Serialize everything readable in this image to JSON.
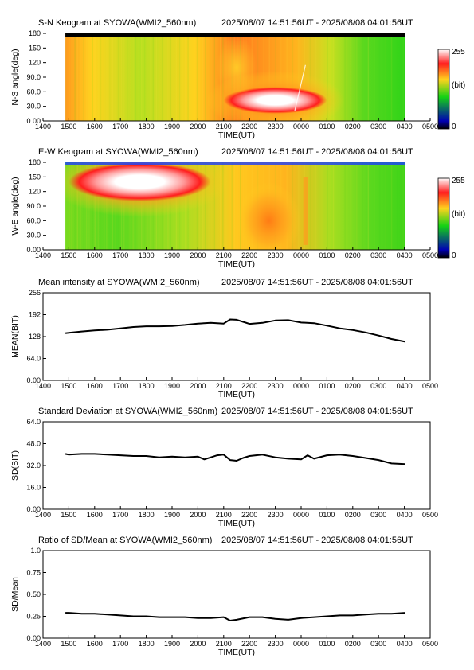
{
  "time_range": "2025/08/07 14:51:56UT - 2025/08/08 04:01:56UT",
  "x_ticks": [
    "1400",
    "1500",
    "1600",
    "1700",
    "1800",
    "1900",
    "2000",
    "2100",
    "2200",
    "2300",
    "0000",
    "0100",
    "0200",
    "0300",
    "0400",
    "0500"
  ],
  "x_label": "TIME(UT)",
  "colorbar": {
    "max_label": "255",
    "unit_label": "(bit)",
    "min_label": "0"
  },
  "colors": {
    "peak": "#ffffff",
    "high": "#ff1e1e",
    "mid": "#ffd21e",
    "low": "#14d214",
    "base": "#0000b4",
    "zero": "#000000"
  },
  "chart_data": [
    {
      "type": "heatmap",
      "title": "S-N Keogram at SYOWA(WMI2_560nm)",
      "ylabel": "N-S angle(deg)",
      "yticks": [
        "0.00",
        "30.0",
        "60.0",
        "90.0",
        "120",
        "150",
        "180"
      ],
      "xlim": [
        "1400",
        "0500"
      ],
      "ylim": [
        0,
        180
      ],
      "data_span": [
        "14:51:56",
        "04:01:56"
      ],
      "description_features": [
        {
          "label": "bright region",
          "t": [
            "21:00",
            "01:00"
          ],
          "angle": [
            15,
            70
          ],
          "peak_bit": 255
        },
        {
          "label": "top band saturated dark",
          "angle": [
            172,
            180
          ]
        }
      ]
    },
    {
      "type": "heatmap",
      "title": "E-W Keogram at SYOWA(WMI2_560nm)",
      "ylabel": "W-E angle(deg)",
      "yticks": [
        "0.00",
        "30.0",
        "60.0",
        "90.0",
        "120",
        "150",
        "180"
      ],
      "xlim": [
        "1400",
        "0500"
      ],
      "ylim": [
        0,
        180
      ],
      "data_span": [
        "14:51:56",
        "04:01:56"
      ],
      "description_features": [
        {
          "label": "bright region",
          "t": [
            "15:00",
            "20:30"
          ],
          "angle": [
            100,
            180
          ],
          "peak_bit": 255
        }
      ]
    },
    {
      "type": "line",
      "title": "Mean intensity at SYOWA(WMI2_560nm)",
      "ylabel": "MEAN(BIT)",
      "yticks": [
        "0.00",
        "64.0",
        "128",
        "192",
        "256"
      ],
      "ylim": [
        0,
        256
      ],
      "x": [
        "14:52",
        "15:00",
        "15:30",
        "16:00",
        "16:30",
        "17:00",
        "17:30",
        "18:00",
        "18:30",
        "19:00",
        "19:30",
        "20:00",
        "20:30",
        "21:00",
        "21:15",
        "21:30",
        "21:45",
        "22:00",
        "22:30",
        "23:00",
        "23:30",
        "00:00",
        "00:30",
        "01:00",
        "01:30",
        "02:00",
        "02:30",
        "03:00",
        "03:30",
        "04:02"
      ],
      "series": [
        {
          "values": [
            138,
            139,
            143,
            146,
            148,
            152,
            156,
            158,
            158,
            159,
            162,
            166,
            168,
            166,
            178,
            177,
            171,
            165,
            168,
            175,
            176,
            169,
            167,
            160,
            152,
            147,
            140,
            131,
            121,
            113
          ]
        }
      ]
    },
    {
      "type": "line",
      "title": "Standard Deviation at SYOWA(WMI2_560nm)",
      "ylabel": "SD(BIT)",
      "yticks": [
        "0.00",
        "16.0",
        "32.0",
        "48.0",
        "64.0"
      ],
      "ylim": [
        0,
        64
      ],
      "x": [
        "14:52",
        "15:00",
        "15:30",
        "16:00",
        "16:30",
        "17:00",
        "17:30",
        "18:00",
        "18:30",
        "19:00",
        "19:30",
        "20:00",
        "20:15",
        "20:30",
        "20:45",
        "21:00",
        "21:15",
        "21:30",
        "21:45",
        "22:00",
        "22:30",
        "23:00",
        "23:30",
        "00:00",
        "00:15",
        "00:30",
        "01:00",
        "01:30",
        "02:00",
        "02:30",
        "03:00",
        "03:30",
        "04:02"
      ],
      "series": [
        {
          "values": [
            40.5,
            40,
            40.5,
            40.5,
            40,
            39.5,
            39,
            39,
            38,
            38.5,
            38,
            38.5,
            36.5,
            38,
            39.5,
            40,
            36,
            35.5,
            37.5,
            39,
            40,
            38,
            37,
            36.5,
            39.5,
            37,
            39.5,
            40,
            39,
            37.5,
            36,
            33.5,
            33
          ]
        }
      ]
    },
    {
      "type": "line",
      "title": "Ratio of SD/Mean at SYOWA(WMI2_560nm)",
      "ylabel": "SD/Mean",
      "yticks": [
        "0.00",
        "0.25",
        "0.50",
        "0.75",
        "1.0"
      ],
      "ylim": [
        0,
        1.0
      ],
      "x": [
        "14:52",
        "15:00",
        "15:30",
        "16:00",
        "16:30",
        "17:00",
        "17:30",
        "18:00",
        "18:30",
        "19:00",
        "19:30",
        "20:00",
        "20:30",
        "21:00",
        "21:15",
        "21:30",
        "22:00",
        "22:30",
        "23:00",
        "23:30",
        "00:00",
        "00:30",
        "01:00",
        "01:30",
        "02:00",
        "02:30",
        "03:00",
        "03:30",
        "04:02"
      ],
      "series": [
        {
          "values": [
            0.29,
            0.29,
            0.28,
            0.28,
            0.27,
            0.26,
            0.25,
            0.25,
            0.24,
            0.24,
            0.24,
            0.23,
            0.23,
            0.24,
            0.2,
            0.21,
            0.24,
            0.24,
            0.22,
            0.21,
            0.23,
            0.24,
            0.25,
            0.26,
            0.26,
            0.27,
            0.28,
            0.28,
            0.29
          ]
        }
      ]
    }
  ]
}
